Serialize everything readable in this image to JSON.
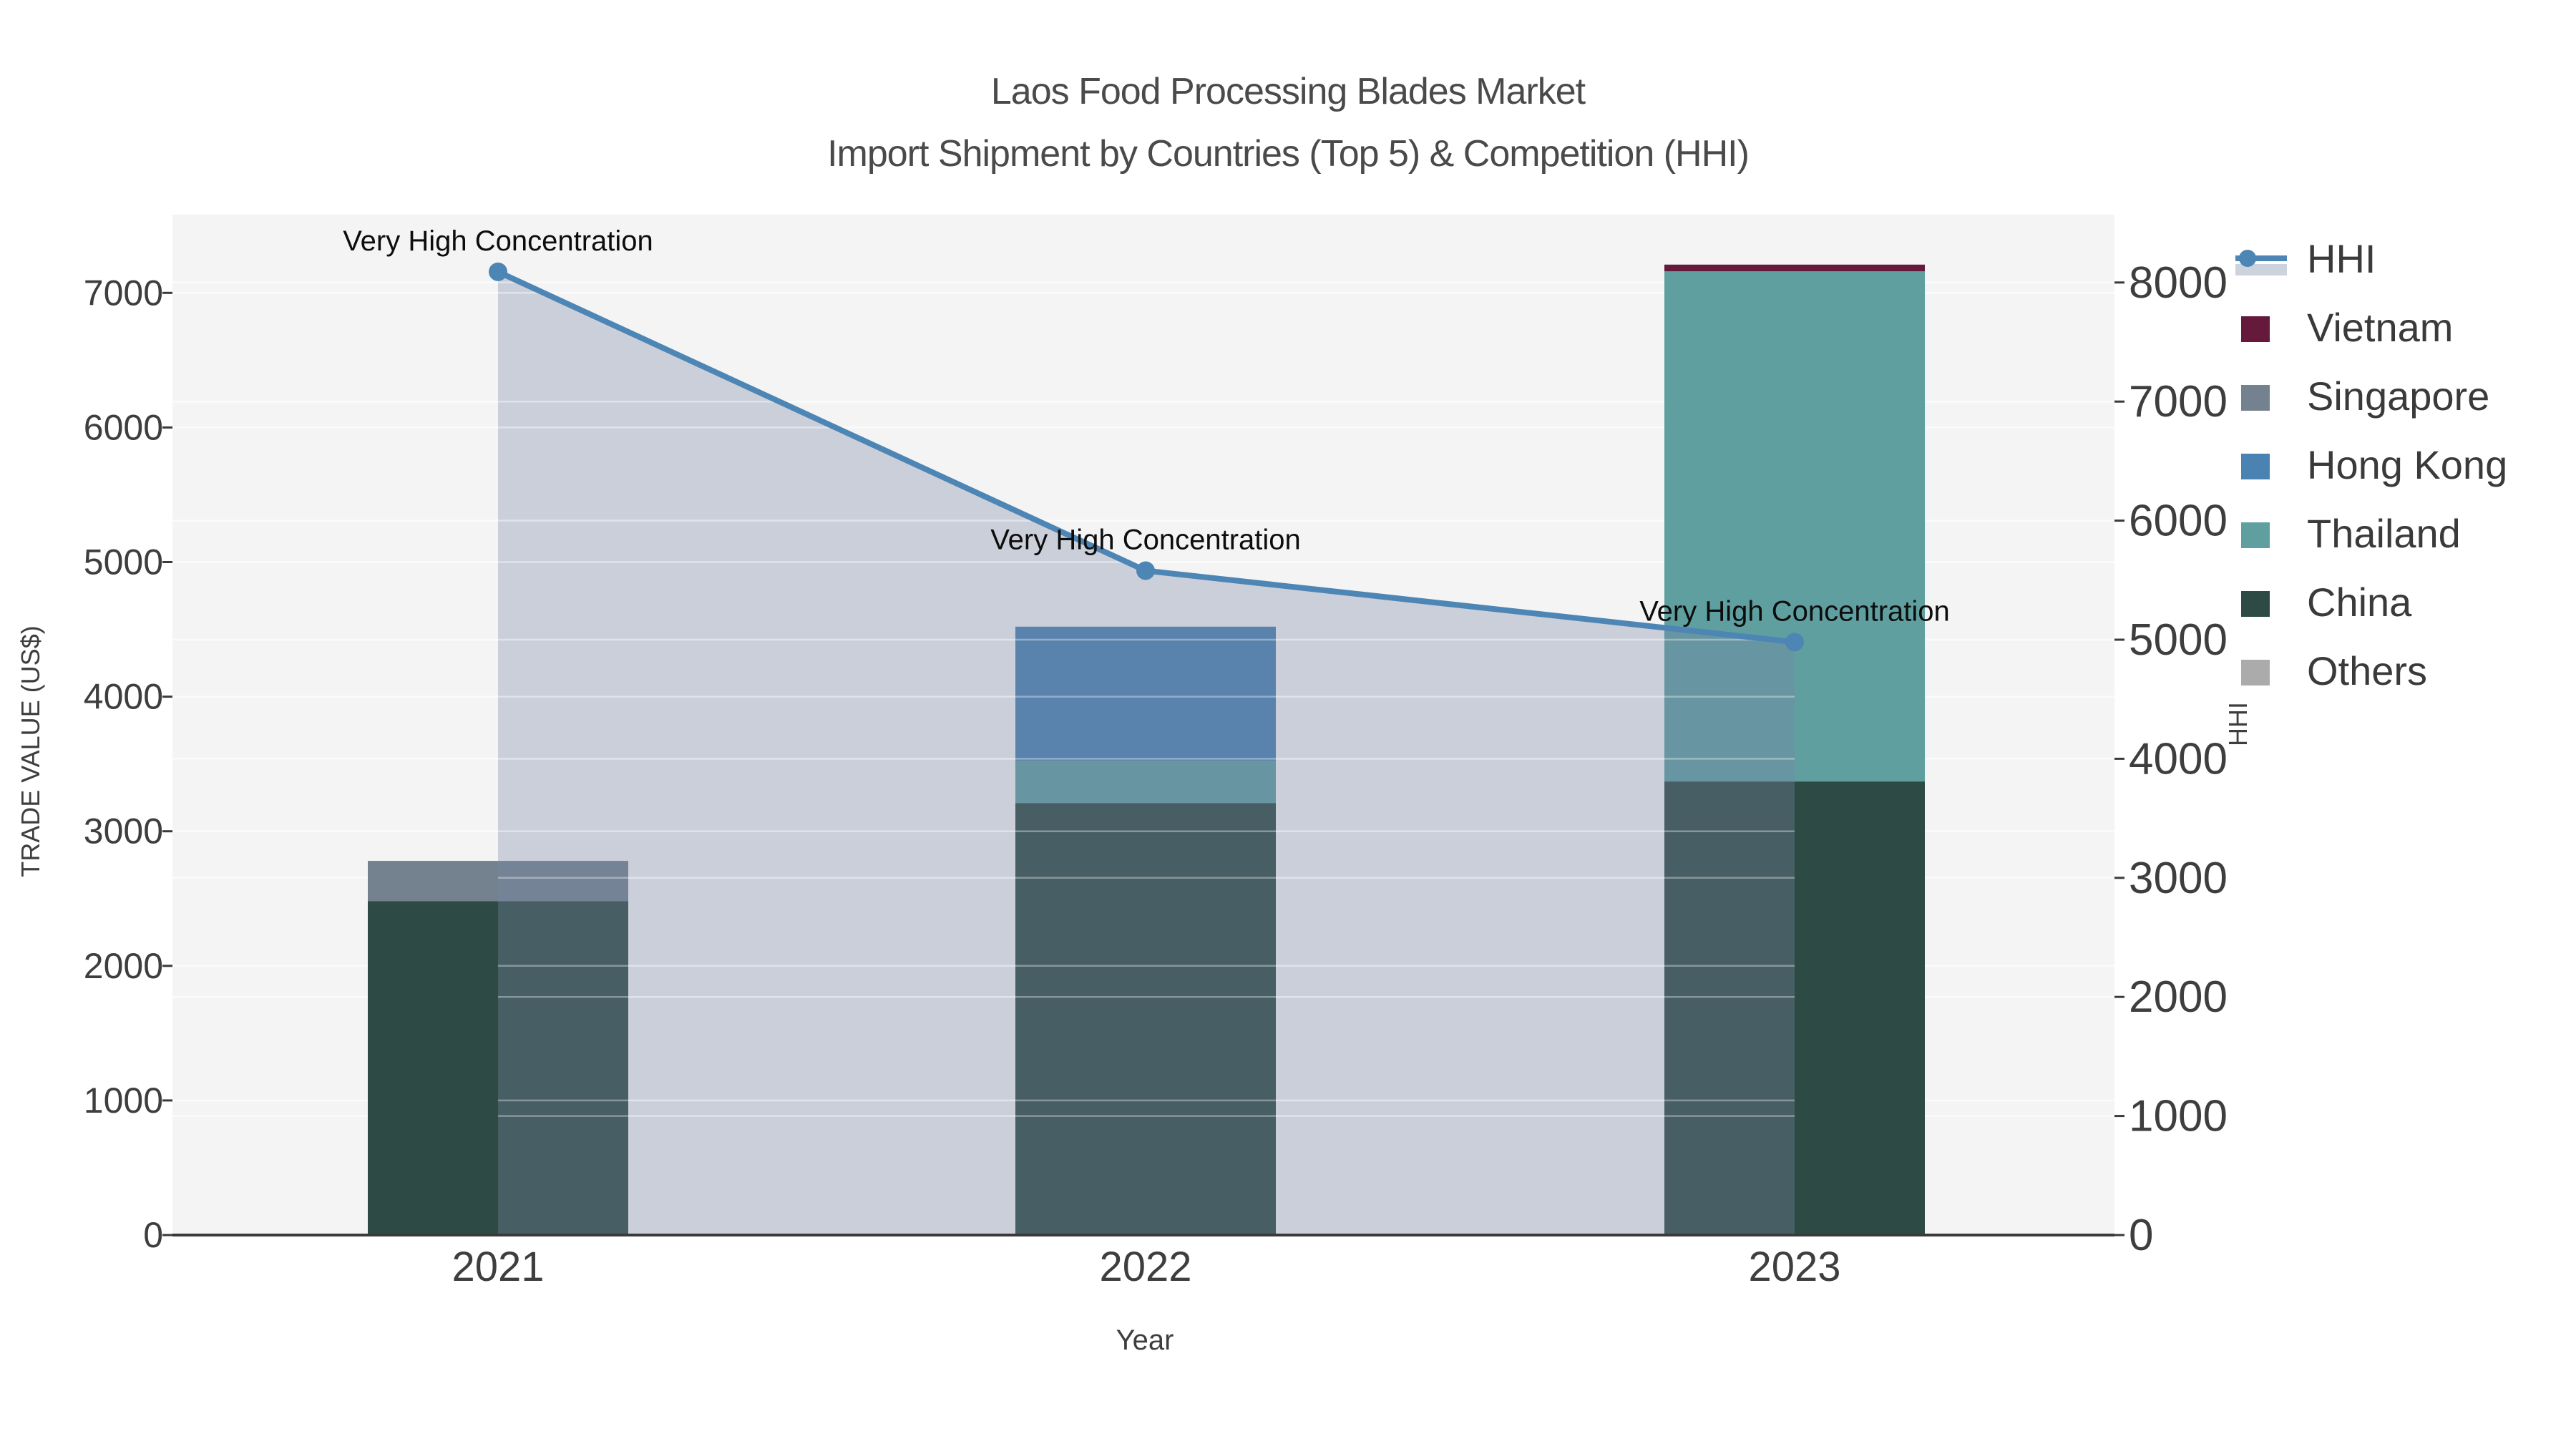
{
  "title": {
    "line1": "Laos Food Processing Blades Market",
    "line2": "Import Shipment by Countries (Top 5) & Competition (HHI)"
  },
  "axes": {
    "x": {
      "label": "Year",
      "categories": [
        "2021",
        "2022",
        "2023"
      ]
    },
    "y_left": {
      "label": "TRADE VALUE (US$)",
      "ticks": [
        0,
        1000,
        2000,
        3000,
        4000,
        5000,
        6000,
        7000
      ],
      "max": 7580
    },
    "y_right": {
      "label": "HHI",
      "ticks": [
        0,
        1000,
        2000,
        3000,
        4000,
        5000,
        6000,
        7000,
        8000
      ],
      "max": 8570
    }
  },
  "legend": {
    "entries": [
      {
        "label": "HHI",
        "type": "line",
        "color": "#4d86b5",
        "band_color": "#ccd3dd"
      },
      {
        "label": "Vietnam",
        "type": "patch",
        "color": "#651a3b"
      },
      {
        "label": "Singapore",
        "type": "patch",
        "color": "#74828f"
      },
      {
        "label": "Hong Kong",
        "type": "patch",
        "color": "#4a82b1"
      },
      {
        "label": "Thailand",
        "type": "patch",
        "color": "#5f9fa0"
      },
      {
        "label": "China",
        "type": "patch",
        "color": "#2d4b44"
      },
      {
        "label": "Others",
        "type": "patch",
        "color": "#ababab"
      }
    ]
  },
  "annotations": [
    {
      "year": "2021",
      "text": "Very High Concentration"
    },
    {
      "year": "2022",
      "text": "Very High Concentration"
    },
    {
      "year": "2023",
      "text": "Very High Concentration"
    }
  ],
  "colors": {
    "plot_background": "#f4f4f4",
    "gridline": "#fbfbfb",
    "axis_line": "#3a3a3a",
    "hhi_line": "#4d86b5",
    "hhi_area_fill": "rgba(120,135,168,0.33)",
    "china": "#2d4b44",
    "thailand": "#5f9fa0",
    "hong_kong": "#4a82b1",
    "singapore": "#74828f",
    "vietnam": "#651a3b",
    "others": "#ababab"
  },
  "chart_data": {
    "type": "bar",
    "subtype": "stacked-bars-with-line",
    "title": "Laos Food Processing Blades Market — Import Shipment by Countries (Top 5) & Competition (HHI)",
    "categories": [
      "2021",
      "2022",
      "2023"
    ],
    "series": [
      {
        "name": "China",
        "axis": "left",
        "values": [
          2480,
          3210,
          3370
        ]
      },
      {
        "name": "Thailand",
        "axis": "left",
        "values": [
          0,
          315,
          3790
        ]
      },
      {
        "name": "Hong Kong",
        "axis": "left",
        "values": [
          0,
          995,
          0
        ]
      },
      {
        "name": "Singapore",
        "axis": "left",
        "values": [
          300,
          0,
          0
        ]
      },
      {
        "name": "Vietnam",
        "axis": "left",
        "values": [
          0,
          0,
          50
        ]
      },
      {
        "name": "Others",
        "axis": "left",
        "values": [
          0,
          0,
          0
        ]
      }
    ],
    "bar_totals": [
      2780,
      4520,
      7210
    ],
    "line_series": {
      "name": "HHI",
      "axis": "right",
      "values": [
        8090,
        5580,
        4980
      ],
      "area_fill": true
    },
    "xlabel": "Year",
    "ylabel_left": "TRADE VALUE (US$)",
    "ylabel_right": "HHI",
    "ylim_left": [
      0,
      7580
    ],
    "ylim_right": [
      0,
      8570
    ],
    "grid": true,
    "legend_position": "right-outside-top"
  }
}
